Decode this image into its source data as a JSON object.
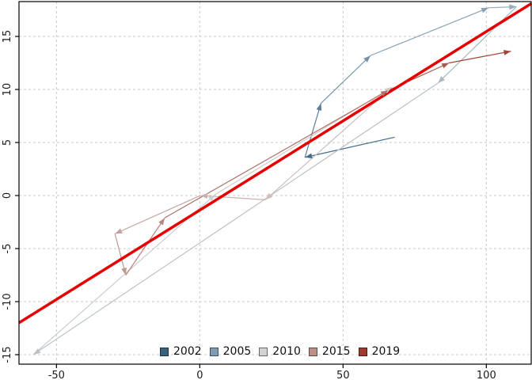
{
  "chart_data": {
    "type": "scatter",
    "subtype": "connected-arrow-phase-plot",
    "title": "",
    "xlabel": "",
    "ylabel": "",
    "xlim": [
      -63.1,
      115.7
    ],
    "ylim": [
      -15.9,
      18.3
    ],
    "x_ticks": [
      -50,
      0,
      50,
      100
    ],
    "y_ticks": [
      -15,
      -10,
      -5,
      0,
      5,
      10,
      15
    ],
    "grid": "dashed",
    "colors": {
      "background": "#ffffff",
      "grid": "#c8c8c8",
      "axis": "#000000",
      "trend": "#e60000"
    },
    "trend_line": {
      "x1": -63.1,
      "y1": -12.0,
      "x2": 115.7,
      "y2": 18.1,
      "color": "#e60000"
    },
    "trajectory": [
      {
        "year": 2002,
        "x": 68.0,
        "y": 5.5
      },
      {
        "year": 2003,
        "x": 36.7,
        "y": 3.6
      },
      {
        "year": 2004,
        "x": 42.3,
        "y": 8.7
      },
      {
        "year": 2005,
        "x": 59.6,
        "y": 13.2
      },
      {
        "year": 2006,
        "x": 100.8,
        "y": 17.7
      },
      {
        "year": 2007,
        "x": 110.5,
        "y": 17.8
      },
      {
        "year": 2008,
        "x": 83.1,
        "y": 10.6
      },
      {
        "year": 2009,
        "x": -58.1,
        "y": -15.0
      },
      {
        "year": 2010,
        "x": 5.4,
        "y": 0.1
      },
      {
        "year": 2011,
        "x": 67.0,
        "y": 10.2
      },
      {
        "year": 2012,
        "x": 22.9,
        "y": -0.4
      },
      {
        "year": 2013,
        "x": 0.2,
        "y": 0.0
      },
      {
        "year": 2014,
        "x": -29.6,
        "y": -3.6
      },
      {
        "year": 2015,
        "x": -25.8,
        "y": -7.5
      },
      {
        "year": 2016,
        "x": -12.2,
        "y": -2.1
      },
      {
        "year": 2017,
        "x": 65.7,
        "y": 9.9
      },
      {
        "year": 2018,
        "x": 87.0,
        "y": 12.5
      },
      {
        "year": 2019,
        "x": 108.6,
        "y": 13.6
      }
    ],
    "color_anchors": [
      {
        "year": 2002,
        "color": "#35637F"
      },
      {
        "year": 2005,
        "color": "#7E9DB4"
      },
      {
        "year": 2010,
        "color": "#D2D2D2"
      },
      {
        "year": 2015,
        "color": "#BB8F88"
      },
      {
        "year": 2019,
        "color": "#9C3C2F"
      }
    ],
    "legend": {
      "position": "bottom-center",
      "entries": [
        {
          "label": "2002",
          "color": "#35637F"
        },
        {
          "label": "2005",
          "color": "#7E9DB4"
        },
        {
          "label": "2010",
          "color": "#D2D2D2"
        },
        {
          "label": "2015",
          "color": "#BB8F88"
        },
        {
          "label": "2019",
          "color": "#9C3C2F"
        }
      ]
    }
  }
}
